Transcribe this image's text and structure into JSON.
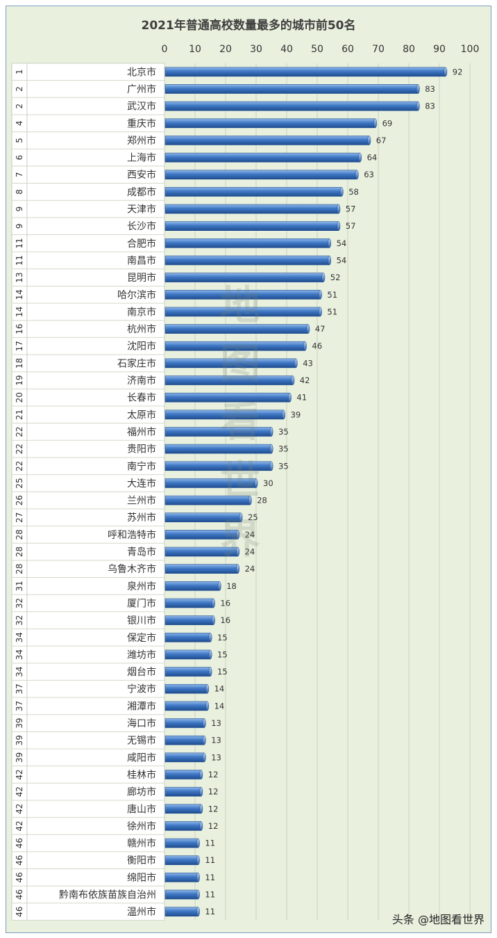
{
  "chart_data": {
    "type": "bar",
    "orientation": "horizontal",
    "title": "2021年普通高校数量最多的城市前50名",
    "xlim": [
      0,
      100
    ],
    "ticks": [
      0,
      10,
      20,
      30,
      40,
      50,
      60,
      70,
      80,
      90,
      100
    ],
    "xaxis_position": "top",
    "grid": true,
    "rows": [
      {
        "rank": "1",
        "city": "北京市",
        "value": 92
      },
      {
        "rank": "2",
        "city": "广州市",
        "value": 83
      },
      {
        "rank": "2",
        "city": "武汉市",
        "value": 83
      },
      {
        "rank": "4",
        "city": "重庆市",
        "value": 69
      },
      {
        "rank": "5",
        "city": "郑州市",
        "value": 67
      },
      {
        "rank": "6",
        "city": "上海市",
        "value": 64
      },
      {
        "rank": "7",
        "city": "西安市",
        "value": 63
      },
      {
        "rank": "8",
        "city": "成都市",
        "value": 58
      },
      {
        "rank": "9",
        "city": "天津市",
        "value": 57
      },
      {
        "rank": "9",
        "city": "长沙市",
        "value": 57
      },
      {
        "rank": "11",
        "city": "合肥市",
        "value": 54
      },
      {
        "rank": "11",
        "city": "南昌市",
        "value": 54
      },
      {
        "rank": "13",
        "city": "昆明市",
        "value": 52
      },
      {
        "rank": "14",
        "city": "哈尔滨市",
        "value": 51
      },
      {
        "rank": "14",
        "city": "南京市",
        "value": 51
      },
      {
        "rank": "16",
        "city": "杭州市",
        "value": 47
      },
      {
        "rank": "17",
        "city": "沈阳市",
        "value": 46
      },
      {
        "rank": "18",
        "city": "石家庄市",
        "value": 43
      },
      {
        "rank": "19",
        "city": "济南市",
        "value": 42
      },
      {
        "rank": "20",
        "city": "长春市",
        "value": 41
      },
      {
        "rank": "21",
        "city": "太原市",
        "value": 39
      },
      {
        "rank": "22",
        "city": "福州市",
        "value": 35
      },
      {
        "rank": "22",
        "city": "贵阳市",
        "value": 35
      },
      {
        "rank": "22",
        "city": "南宁市",
        "value": 35
      },
      {
        "rank": "25",
        "city": "大连市",
        "value": 30
      },
      {
        "rank": "26",
        "city": "兰州市",
        "value": 28
      },
      {
        "rank": "27",
        "city": "苏州市",
        "value": 25
      },
      {
        "rank": "28",
        "city": "呼和浩特市",
        "value": 24
      },
      {
        "rank": "28",
        "city": "青岛市",
        "value": 24
      },
      {
        "rank": "28",
        "city": "乌鲁木齐市",
        "value": 24
      },
      {
        "rank": "31",
        "city": "泉州市",
        "value": 18
      },
      {
        "rank": "32",
        "city": "厦门市",
        "value": 16
      },
      {
        "rank": "32",
        "city": "银川市",
        "value": 16
      },
      {
        "rank": "34",
        "city": "保定市",
        "value": 15
      },
      {
        "rank": "34",
        "city": "潍坊市",
        "value": 15
      },
      {
        "rank": "34",
        "city": "烟台市",
        "value": 15
      },
      {
        "rank": "37",
        "city": "宁波市",
        "value": 14
      },
      {
        "rank": "37",
        "city": "湘潭市",
        "value": 14
      },
      {
        "rank": "39",
        "city": "海口市",
        "value": 13
      },
      {
        "rank": "39",
        "city": "无锡市",
        "value": 13
      },
      {
        "rank": "39",
        "city": "咸阳市",
        "value": 13
      },
      {
        "rank": "42",
        "city": "桂林市",
        "value": 12
      },
      {
        "rank": "42",
        "city": "廊坊市",
        "value": 12
      },
      {
        "rank": "42",
        "city": "唐山市",
        "value": 12
      },
      {
        "rank": "42",
        "city": "徐州市",
        "value": 12
      },
      {
        "rank": "46",
        "city": "赣州市",
        "value": 11
      },
      {
        "rank": "46",
        "city": "衡阳市",
        "value": 11
      },
      {
        "rank": "46",
        "city": "绵阳市",
        "value": 11
      },
      {
        "rank": "46",
        "city": "黔南布依族苗族自治州",
        "value": 11
      },
      {
        "rank": "46",
        "city": "温州市",
        "value": 11
      }
    ],
    "colors": {
      "bar": "#3f77c4",
      "bar_light": "#8fb8ea",
      "bar_dark": "#1f4d8f",
      "plot_bg": "#e9f0de",
      "label_bg": "#ffffff",
      "grid": "#c9d3bd",
      "text": "#333333"
    }
  },
  "watermark": [
    "地",
    "图",
    "看",
    "世",
    "界"
  ],
  "footer": "头条 @地图看世界"
}
